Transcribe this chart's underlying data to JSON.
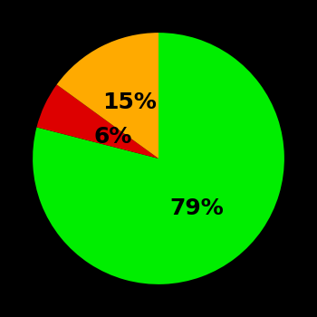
{
  "values": [
    79,
    6,
    15
  ],
  "colors": [
    "#00ee00",
    "#dd0000",
    "#ffaa00"
  ],
  "labels": [
    "79%",
    "6%",
    "15%"
  ],
  "label_offsets": [
    0.5,
    0.4,
    0.5
  ],
  "background_color": "#000000",
  "startangle": 90,
  "label_fontsize": 18,
  "label_fontweight": "bold",
  "figsize": [
    3.5,
    3.5
  ],
  "dpi": 100
}
